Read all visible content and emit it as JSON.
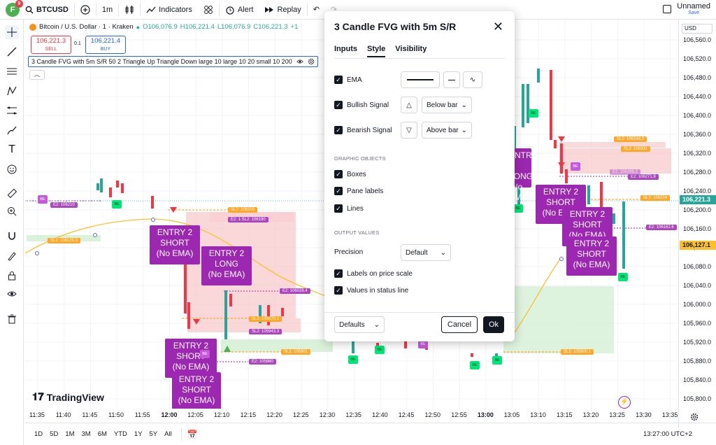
{
  "topbar": {
    "avatar_letter": "F",
    "notification_count": "9",
    "symbol": "BTCUSD",
    "interval": "1m",
    "indicators_label": "Indicators",
    "alert_label": "Alert",
    "replay_label": "Replay",
    "layout_name": "Unnamed",
    "layout_status": "Save"
  },
  "legend": {
    "title": "Bitcoin / U.S. Dollar · 1 · Kraken",
    "open": "O106,076.9",
    "high": "H106,221.4",
    "low": "L106,076.9",
    "close": "C106,221.3",
    "change": "+1"
  },
  "order": {
    "sell_price": "106,221.3",
    "sell_label": "SELL",
    "spread": "0.1",
    "buy_price": "106,221.4",
    "buy_label": "BUY"
  },
  "indicator_line": "3 Candle FVG with 5m S/R 50 2 Triangle Up Triangle Down large 10 large 10 20 small 10 200",
  "dialog": {
    "title": "3 Candle FVG with 5m S/R",
    "tabs": [
      "Inputs",
      "Style",
      "Visibility"
    ],
    "ema_label": "EMA",
    "bullish_label": "Bullish Signal",
    "bullish_position": "Below bar",
    "bearish_label": "Bearish Signal",
    "bearish_position": "Above bar",
    "graphic_objects_heading": "GRAPHIC OBJECTS",
    "boxes_label": "Boxes",
    "pane_labels_label": "Pane labels",
    "lines_label": "Lines",
    "output_values_heading": "OUTPUT VALUES",
    "precision_label": "Precision",
    "precision_value": "Default",
    "labels_price_scale": "Labels on price scale",
    "values_status_line": "Values in status line",
    "defaults_label": "Defaults",
    "cancel_label": "Cancel",
    "ok_label": "Ok"
  },
  "price_axis": {
    "currency": "USD",
    "ticks": [
      "106,560.0",
      "106,520.0",
      "106,480.0",
      "106,440.0",
      "106,400.0",
      "106,360.0",
      "106,320.0",
      "106,280.0",
      "106,240.0",
      "106,200.0",
      "106,160.0",
      "106,120.0",
      "106,080.0",
      "106,040.0",
      "106,000.0",
      "105,960.0",
      "105,920.0",
      "105,880.0",
      "105,840.0",
      "105,800.0"
    ],
    "last_price": "106,221.3",
    "ema_price": "106,127.1"
  },
  "time_axis": {
    "ticks": [
      "11:35",
      "11:40",
      "11:45",
      "11:50",
      "11:55",
      "12:00",
      "12:05",
      "12:10",
      "12:15",
      "12:20",
      "12:25",
      "12:30",
      "12:35",
      "12:40",
      "12:45",
      "12:50",
      "12:55",
      "13:00",
      "13:05",
      "13:10",
      "13:15",
      "13:20",
      "13:25",
      "13:30",
      "13:35"
    ]
  },
  "bottom": {
    "ranges": [
      "1D",
      "5D",
      "1M",
      "3M",
      "6M",
      "YTD",
      "1Y",
      "5Y",
      "All"
    ],
    "clock": "13:27:00 UTC+2"
  },
  "watermark": "TradingView",
  "chart_labels": {
    "entry_short_1": [
      "ENTRY 2",
      "SHORT",
      "(No EMA)"
    ],
    "entry_long": [
      "ENTRY 2",
      "LONG",
      "(No EMA)"
    ],
    "entry_short_2": [
      "ENTRY 2",
      "SHORT",
      "(No EMA)"
    ],
    "entry_short_3": [
      "ENTRY 2",
      "SHORT",
      "(No EMA)"
    ],
    "entry_long_partial": [
      "ENTRY 2",
      "LONG",
      "(No EMA)"
    ],
    "entry_short_right1": [
      "ENTRY 2",
      "SHORT",
      "(No EMA)"
    ],
    "entry_short_right2": [
      "ENTRY 2",
      "SHORT",
      "(No EMA)"
    ],
    "entry_short_right3": [
      "ENTRY 2",
      "SHORT",
      "(No EMA)"
    ],
    "be": "BE",
    "tag_e2_106210": "E2: 106210",
    "tag_sl2_106125": "SL2: 106125.5",
    "tag_sl2_106200": "SL2: 106200",
    "tag_e2_106190": "E2: 1∙SL2: 106190",
    "tag_e2_106028": "E2: 106028.4",
    "tag_sl2_105970": "SL2: 105970.1",
    "tag_sl2_105943": "SL2: 105943.3",
    "tag_sl2_105901": "SL2: 105901",
    "tag_e2_105880": "E2: 105880",
    "tag_sl2_105900": "SL2: 105900.1",
    "tag_sl2_106348": "SL2: 106348.3",
    "tag_sl2_106331": "SL2: 106331",
    "tag_e2_106271": "E2: 106271.9",
    "tag_e2_106298": "E2: 106298.3",
    "tag_sl2_106224": "SL2: 106224",
    "tag_e2_106162": "E2: 106162.6"
  }
}
